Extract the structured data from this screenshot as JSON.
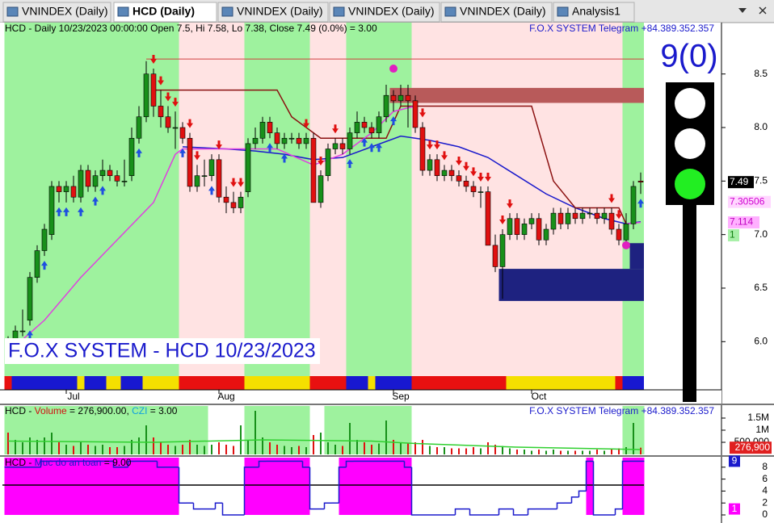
{
  "tabs": [
    "VNINDEX (Daily)",
    "HCD (Daily)",
    "VNINDEX (Daily)",
    "VNINDEX (Daily)",
    "VNINDEX (Daily)",
    "Analysis1"
  ],
  "active_tab": 1,
  "chart_data": [
    {
      "type": "candlestick",
      "header": "HCD - Daily 10/23/2023 00:00:00 Open 7.5, Hi 7.58, Lo 7.38, Close 7.49 (0.0%)   = 3.00",
      "credit": "F.O.X SYSTEM Telegram +84.389.352.357",
      "watermark": "F.O.X SYSTEM - HCD 10/23/2023",
      "signal_count": "9(0)",
      "up_color": "#18901a",
      "down_color": "#e01010",
      "candles": [
        [
          6.0,
          6.05,
          5.85,
          5.95
        ],
        [
          5.98,
          6.15,
          5.95,
          6.1
        ],
        [
          6.1,
          6.3,
          6.05,
          6.1
        ],
        [
          6.2,
          6.65,
          6.15,
          6.6
        ],
        [
          6.6,
          6.9,
          6.55,
          6.85
        ],
        [
          6.85,
          7.1,
          6.8,
          7.05
        ],
        [
          7.0,
          7.5,
          6.95,
          7.45
        ],
        [
          7.45,
          7.5,
          7.3,
          7.4
        ],
        [
          7.4,
          7.5,
          7.3,
          7.45
        ],
        [
          7.45,
          7.55,
          7.3,
          7.35
        ],
        [
          7.35,
          7.65,
          7.3,
          7.6
        ],
        [
          7.6,
          7.65,
          7.4,
          7.45
        ],
        [
          7.45,
          7.6,
          7.4,
          7.55
        ],
        [
          7.55,
          7.7,
          7.5,
          7.6
        ],
        [
          7.6,
          7.65,
          7.5,
          7.55
        ],
        [
          7.55,
          7.6,
          7.45,
          7.5
        ],
        [
          7.5,
          7.7,
          7.45,
          7.5
        ],
        [
          7.55,
          8.0,
          7.5,
          7.9
        ],
        [
          7.9,
          8.2,
          7.85,
          8.1
        ],
        [
          8.1,
          8.62,
          8.05,
          8.5
        ],
        [
          8.5,
          8.55,
          8.1,
          8.2
        ],
        [
          8.2,
          8.35,
          8.0,
          8.1
        ],
        [
          8.1,
          8.2,
          7.95,
          8.0
        ],
        [
          8.0,
          8.15,
          7.8,
          8.0
        ],
        [
          8.0,
          8.05,
          7.85,
          7.9
        ],
        [
          7.9,
          7.95,
          7.4,
          7.45
        ],
        [
          7.45,
          7.65,
          7.4,
          7.55
        ],
        [
          7.55,
          7.7,
          7.45,
          7.55
        ],
        [
          7.55,
          7.75,
          7.5,
          7.7
        ],
        [
          7.7,
          7.75,
          7.3,
          7.35
        ],
        [
          7.35,
          7.45,
          7.2,
          7.3
        ],
        [
          7.3,
          7.4,
          7.2,
          7.25
        ],
        [
          7.25,
          7.4,
          7.2,
          7.35
        ],
        [
          7.4,
          7.9,
          7.35,
          7.85
        ],
        [
          7.85,
          8.0,
          7.8,
          7.9
        ],
        [
          7.9,
          8.1,
          7.85,
          8.05
        ],
        [
          8.05,
          8.1,
          7.9,
          7.95
        ],
        [
          7.95,
          8.0,
          7.8,
          7.85
        ],
        [
          7.85,
          7.95,
          7.8,
          7.9
        ],
        [
          7.9,
          7.95,
          7.85,
          7.9
        ],
        [
          7.9,
          7.95,
          7.8,
          7.85
        ],
        [
          7.85,
          7.95,
          7.8,
          7.9
        ],
        [
          7.9,
          7.95,
          7.3,
          7.3
        ],
        [
          7.3,
          7.6,
          7.25,
          7.55
        ],
        [
          7.55,
          7.85,
          7.5,
          7.8
        ],
        [
          7.8,
          7.9,
          7.75,
          7.85
        ],
        [
          7.85,
          7.9,
          7.75,
          7.8
        ],
        [
          7.8,
          8.0,
          7.75,
          7.95
        ],
        [
          7.95,
          8.15,
          7.9,
          8.05
        ],
        [
          8.05,
          8.1,
          7.95,
          8.0
        ],
        [
          8.0,
          8.05,
          7.9,
          7.95
        ],
        [
          7.95,
          8.15,
          7.9,
          8.1
        ],
        [
          8.1,
          8.4,
          8.05,
          8.3
        ],
        [
          8.3,
          8.35,
          8.15,
          8.25
        ],
        [
          8.25,
          8.4,
          8.2,
          8.3
        ],
        [
          8.3,
          8.4,
          8.0,
          8.25
        ],
        [
          8.25,
          8.3,
          7.95,
          8.0
        ],
        [
          8.0,
          8.05,
          7.55,
          7.6
        ],
        [
          7.6,
          7.75,
          7.55,
          7.7
        ],
        [
          7.7,
          7.75,
          7.5,
          7.55
        ],
        [
          7.55,
          7.65,
          7.5,
          7.6
        ],
        [
          7.6,
          7.65,
          7.5,
          7.55
        ],
        [
          7.55,
          7.6,
          7.45,
          7.5
        ],
        [
          7.5,
          7.55,
          7.4,
          7.45
        ],
        [
          7.45,
          7.5,
          7.35,
          7.4
        ],
        [
          7.4,
          7.45,
          7.25,
          7.4
        ],
        [
          7.4,
          7.45,
          6.9,
          6.9
        ],
        [
          6.9,
          7.0,
          6.65,
          6.7
        ],
        [
          6.7,
          7.05,
          6.4,
          7.0
        ],
        [
          7.0,
          7.2,
          6.95,
          7.15
        ],
        [
          7.15,
          7.2,
          6.95,
          7.0
        ],
        [
          7.0,
          7.15,
          6.95,
          7.1
        ],
        [
          7.1,
          7.2,
          7.05,
          7.15
        ],
        [
          7.15,
          7.2,
          6.9,
          6.95
        ],
        [
          6.95,
          7.1,
          6.9,
          7.05
        ],
        [
          7.05,
          7.25,
          7.0,
          7.2
        ],
        [
          7.2,
          7.25,
          7.05,
          7.1
        ],
        [
          7.1,
          7.25,
          7.05,
          7.2
        ],
        [
          7.2,
          7.25,
          7.1,
          7.15
        ],
        [
          7.15,
          7.25,
          7.1,
          7.2
        ],
        [
          7.2,
          7.25,
          7.15,
          7.2
        ],
        [
          7.2,
          7.25,
          7.1,
          7.15
        ],
        [
          7.15,
          7.25,
          7.1,
          7.2
        ],
        [
          7.2,
          7.25,
          7.0,
          7.05
        ],
        [
          7.05,
          7.1,
          6.9,
          6.95
        ],
        [
          6.95,
          7.2,
          6.9,
          7.1
        ],
        [
          7.1,
          7.5,
          7.05,
          7.45
        ],
        [
          7.5,
          7.58,
          7.38,
          7.49
        ]
      ],
      "ylim": [
        5.55,
        8.98
      ],
      "yticks": [
        {
          "value": 6,
          "label": "6.0"
        },
        {
          "value": 6.5,
          "label": "6.5"
        },
        {
          "value": 7,
          "label": "7.0"
        },
        {
          "value": 7.5,
          "label": "7.5"
        },
        {
          "value": 8,
          "label": "8.0"
        },
        {
          "value": 8.5,
          "label": "8.5"
        }
      ],
      "xticks": [
        {
          "value": 9,
          "label": "Jul"
        },
        {
          "value": 30,
          "label": "Aug"
        },
        {
          "value": 54,
          "label": "Sep"
        },
        {
          "value": 73,
          "label": "Oct"
        }
      ],
      "zones": [
        {
          "from": 0,
          "to": 23,
          "color": "#9ef29e"
        },
        {
          "from": 24,
          "to": 32,
          "color": "#ffe3e3"
        },
        {
          "from": 33,
          "to": 41,
          "color": "#9ef29e"
        },
        {
          "from": 42,
          "to": 46,
          "color": "#ffe3e3"
        },
        {
          "from": 47,
          "to": 55,
          "color": "#9ef29e"
        },
        {
          "from": 56,
          "to": 84,
          "color": "#ffe3e3"
        },
        {
          "from": 85,
          "to": 87,
          "color": "#9ef29e"
        }
      ],
      "state_bar": [
        {
          "from": 0,
          "to": 0,
          "color": "#e81010"
        },
        {
          "from": 1,
          "to": 9,
          "color": "#1818d0"
        },
        {
          "from": 10,
          "to": 10,
          "color": "#f5e000"
        },
        {
          "from": 11,
          "to": 13,
          "color": "#1818d0"
        },
        {
          "from": 14,
          "to": 15,
          "color": "#f5e000"
        },
        {
          "from": 16,
          "to": 18,
          "color": "#1818d0"
        },
        {
          "from": 19,
          "to": 23,
          "color": "#f5e000"
        },
        {
          "from": 24,
          "to": 32,
          "color": "#e81010"
        },
        {
          "from": 33,
          "to": 41,
          "color": "#f5e000"
        },
        {
          "from": 42,
          "to": 46,
          "color": "#e81010"
        },
        {
          "from": 47,
          "to": 49,
          "color": "#1818d0"
        },
        {
          "from": 50,
          "to": 50,
          "color": "#f5e000"
        },
        {
          "from": 51,
          "to": 55,
          "color": "#1818d0"
        },
        {
          "from": 56,
          "to": 68,
          "color": "#e81010"
        },
        {
          "from": 69,
          "to": 83,
          "color": "#f5e000"
        },
        {
          "from": 84,
          "to": 84,
          "color": "#e81010"
        },
        {
          "from": 85,
          "to": 87,
          "color": "#1818d0"
        }
      ],
      "lines": [
        {
          "color": "#1a1acc",
          "x": [
            24,
            30,
            34,
            38,
            42,
            46,
            50,
            54,
            58,
            62,
            66,
            70,
            74,
            78,
            82,
            85,
            87
          ],
          "values": [
            7.82,
            7.8,
            7.78,
            7.75,
            7.7,
            7.72,
            7.82,
            7.92,
            7.88,
            7.82,
            7.72,
            7.55,
            7.38,
            7.25,
            7.15,
            7.1,
            7.12
          ]
        },
        {
          "color": "#8b1010",
          "x": [
            20,
            37,
            39,
            43,
            52,
            54,
            72,
            75,
            78,
            84,
            85
          ],
          "values": [
            8.35,
            8.35,
            8.1,
            7.9,
            7.9,
            8.2,
            8.2,
            7.5,
            7.25,
            7.25,
            7.1
          ]
        },
        {
          "color": "#e040e0",
          "x": [
            0,
            5,
            10,
            15,
            20,
            23,
            24,
            37,
            42,
            46,
            50,
            53,
            56,
            60,
            85,
            87
          ],
          "values": [
            5.9,
            6.2,
            6.6,
            6.95,
            7.3,
            7.75,
            7.8,
            7.8,
            7.65,
            7.75,
            7.95,
            8.15,
            8.2,
            null,
            7.1,
            7.114
          ]
        }
      ],
      "boxes": [
        {
          "from": 53,
          "to": 87,
          "low": 8.23,
          "high": 8.37,
          "color": "#b85a5a"
        },
        {
          "from": 68,
          "to": 87,
          "low": 6.38,
          "high": 6.68,
          "color": "#1e2280"
        },
        {
          "from": 86,
          "to": 87,
          "low": 6.68,
          "high": 6.92,
          "color": "#1e2280"
        }
      ],
      "hline": {
        "from": 19,
        "to": 87,
        "value": 8.64,
        "color": "#d04040"
      },
      "dots": {
        "color": "#e020c0",
        "x": [
          53,
          85
        ],
        "values": [
          8.55,
          6.9
        ]
      },
      "signals": {
        "buy": [
          1,
          3,
          5,
          7,
          8,
          10,
          12,
          13,
          18,
          24,
          28,
          36,
          38,
          47,
          49,
          50,
          51,
          53,
          87
        ],
        "sell": [
          20,
          21,
          22,
          23,
          25,
          26,
          29,
          31,
          32,
          41,
          43,
          45,
          57,
          58,
          59,
          60,
          62,
          63,
          64,
          65,
          66,
          68,
          69,
          83,
          84
        ]
      },
      "badges": [
        {
          "value": 7.49,
          "bg": "#000000",
          "fg": "#ffffff"
        },
        {
          "value": 7.30506,
          "bg": "#ffd6ff",
          "fg": "#d000d0"
        },
        {
          "value": 7.114,
          "bg": "#ffb0ff",
          "fg": "#c000c0"
        },
        {
          "value": 1,
          "bg": "#a8f0a8",
          "fg": "#108010"
        }
      ]
    },
    {
      "type": "volume",
      "title": [
        "HCD - ",
        "Volume",
        " = 276,900.00, ",
        "CZI",
        " = 3.00"
      ],
      "credit": "F.O.X SYSTEM Telegram +84.389.352.357",
      "values": [
        900000,
        600000,
        500000,
        700000,
        600000,
        700000,
        900000,
        500000,
        400000,
        350000,
        500000,
        400000,
        350000,
        400000,
        300000,
        300000,
        350000,
        600000,
        700000,
        1200000,
        700000,
        500000,
        400000,
        350000,
        400000,
        600000,
        400000,
        350000,
        400000,
        500000,
        400000,
        350000,
        1200000,
        600000,
        1800000,
        700000,
        500000,
        400000,
        350000,
        300000,
        350000,
        300000,
        800000,
        900000,
        500000,
        400000,
        350000,
        1300000,
        600000,
        500000,
        400000,
        450000,
        1400000,
        600000,
        500000,
        450000,
        500000,
        600000,
        350000,
        300000,
        300000,
        250000,
        250000,
        250000,
        300000,
        250000,
        500000,
        400000,
        350000,
        250000,
        200000,
        200000,
        150000,
        200000,
        150000,
        200000,
        150000,
        150000,
        150000,
        150000,
        150000,
        200000,
        150000,
        200000,
        250000,
        300000,
        1300000,
        276900
      ],
      "ylim": [
        0,
        1900000
      ],
      "yticks": [
        {
          "value": 500000,
          "label": "500,000"
        },
        {
          "value": 1000000,
          "label": "1M"
        },
        {
          "value": 1500000,
          "label": "1.5M"
        }
      ],
      "last": {
        "value": 276900,
        "label": "276,900"
      },
      "zones": [
        {
          "from": 0,
          "to": 27,
          "color": "#9ef29e"
        },
        {
          "from": 33,
          "to": 41,
          "color": "#9ef29e"
        },
        {
          "from": 44,
          "to": 55,
          "color": "#9ef29e"
        },
        {
          "from": 85,
          "to": 87,
          "color": "#9ef29e"
        }
      ],
      "ma": {
        "color": "#30d030",
        "x": [
          0,
          20,
          35,
          50,
          56,
          70,
          87
        ],
        "values": [
          550000,
          500000,
          600000,
          550000,
          450000,
          300000,
          200000
        ]
      }
    },
    {
      "type": "step",
      "title": [
        "HCD - ",
        "Muc do an toan",
        " = 9.00"
      ],
      "values": [
        8,
        8,
        8,
        8,
        8,
        9,
        9,
        9,
        9,
        9,
        9,
        9,
        9,
        9,
        9,
        8,
        8,
        9,
        9,
        9,
        9,
        8,
        8,
        8,
        2,
        2,
        1,
        1,
        1,
        2,
        0,
        0,
        0,
        8,
        8,
        9,
        9,
        9,
        9,
        9,
        9,
        8,
        1,
        1,
        2,
        2,
        8,
        9,
        9,
        9,
        9,
        9,
        9,
        9,
        9,
        8,
        0,
        0,
        0,
        0,
        0,
        0,
        1,
        1,
        0,
        0,
        0,
        0,
        1,
        1,
        0,
        0,
        1,
        1,
        1,
        1,
        2,
        2,
        3,
        4,
        9,
        0,
        0,
        0,
        1,
        9,
        9,
        9
      ],
      "threshold": 5,
      "color": "#1a1acc",
      "fill": "#ff00ff",
      "ylim": [
        0,
        9.6
      ],
      "yticks": [
        0,
        2,
        4,
        6,
        8
      ],
      "badges": [
        {
          "value": 9,
          "bg": "#1a1acc",
          "fg": "#ffffff"
        },
        {
          "value": 1,
          "bg": "#ff00ff",
          "fg": "#ffffff"
        }
      ]
    }
  ]
}
